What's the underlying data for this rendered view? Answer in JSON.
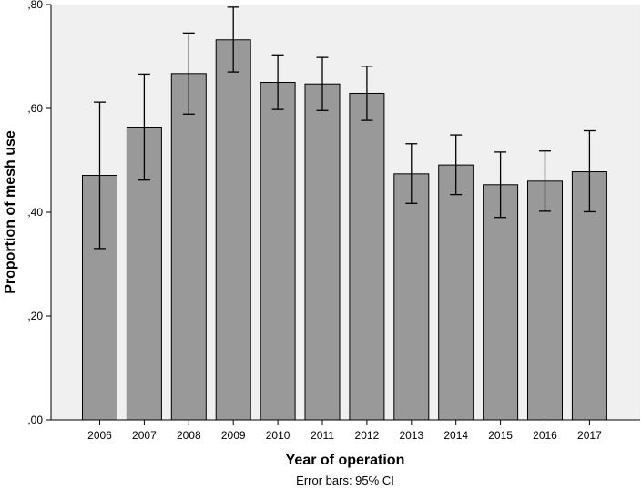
{
  "chart_data": {
    "type": "bar",
    "title": "",
    "xlabel": "Year of operation",
    "ylabel": "Proportion of mesh use",
    "footnote": "Error bars: 95% CI",
    "categories": [
      "2006",
      "2007",
      "2008",
      "2009",
      "2010",
      "2011",
      "2012",
      "2013",
      "2014",
      "2015",
      "2016",
      "2017"
    ],
    "values": [
      0.471,
      0.564,
      0.667,
      0.732,
      0.65,
      0.647,
      0.629,
      0.474,
      0.491,
      0.453,
      0.46,
      0.478
    ],
    "ci_lower": [
      0.33,
      0.462,
      0.589,
      0.67,
      0.598,
      0.596,
      0.577,
      0.417,
      0.434,
      0.39,
      0.402,
      0.401
    ],
    "ci_upper": [
      0.612,
      0.666,
      0.745,
      0.795,
      0.703,
      0.698,
      0.681,
      0.532,
      0.549,
      0.516,
      0.518,
      0.557
    ],
    "ylim": [
      0,
      0.8
    ],
    "yticks": [
      0,
      0.2,
      0.4,
      0.6,
      0.8
    ],
    "ytick_labels": [
      ",00",
      ",20",
      ",40",
      ",60",
      ",80"
    ],
    "grid": false,
    "legend": "none",
    "colors": {
      "plot_background": "#f0f0f0",
      "bar_fill": "#999999",
      "bar_stroke": "#000000",
      "error_bar": "#000000"
    }
  }
}
